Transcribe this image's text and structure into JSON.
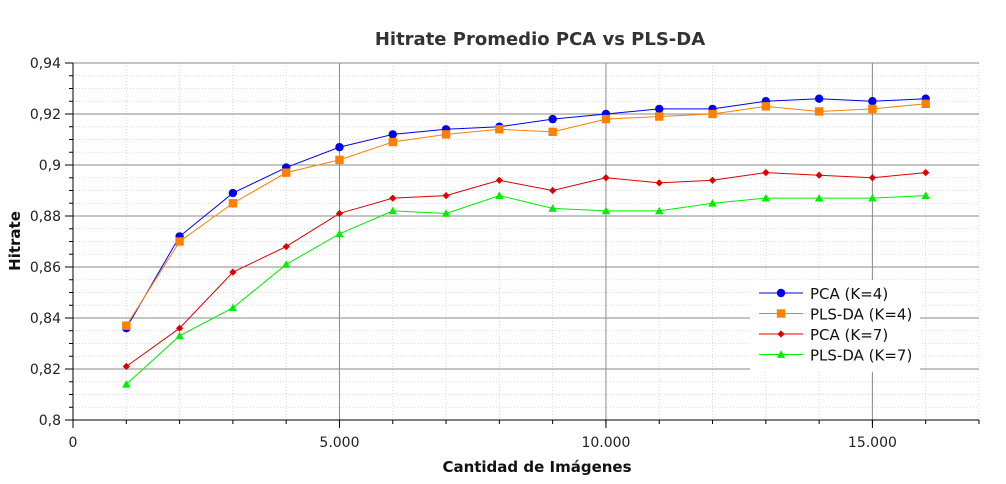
{
  "chart_data": {
    "type": "line",
    "title": "Hitrate Promedio PCA vs PLS-DA",
    "xlabel": "Cantidad de Imágenes",
    "ylabel": "Hitrate",
    "xlim": [
      0,
      17000
    ],
    "ylim": [
      0.8,
      0.94
    ],
    "x_ticks": [
      0,
      5000,
      10000,
      15000
    ],
    "x_tick_labels": [
      "0",
      "5.000",
      "10.000",
      "15.000"
    ],
    "y_ticks": [
      0.8,
      0.82,
      0.84,
      0.86,
      0.88,
      0.9,
      0.92,
      0.94
    ],
    "y_tick_labels": [
      "0,8",
      "0,82",
      "0,84",
      "0,86",
      "0,88",
      "0,9",
      "0,92",
      "0,94"
    ],
    "grid": true,
    "legend_position": "bottom-right",
    "x": [
      1000,
      2000,
      3000,
      4000,
      5000,
      6000,
      7000,
      8000,
      9000,
      10000,
      11000,
      12000,
      13000,
      14000,
      15000,
      16000
    ],
    "series": [
      {
        "name": "PCA (K=4)",
        "color": "#0000ee",
        "marker": "circle",
        "values": [
          0.836,
          0.872,
          0.889,
          0.899,
          0.907,
          0.912,
          0.914,
          0.915,
          0.918,
          0.92,
          0.922,
          0.922,
          0.925,
          0.926,
          0.925,
          0.926
        ]
      },
      {
        "name": "PLS-DA (K=4)",
        "color": "#ff8000",
        "marker": "square",
        "values": [
          0.837,
          0.87,
          0.885,
          0.897,
          0.902,
          0.909,
          0.912,
          0.914,
          0.913,
          0.918,
          0.919,
          0.92,
          0.923,
          0.921,
          0.922,
          0.924
        ]
      },
      {
        "name": "PCA (K=7)",
        "color": "#dd0000",
        "marker": "diamond",
        "values": [
          0.821,
          0.836,
          0.858,
          0.868,
          0.881,
          0.887,
          0.888,
          0.894,
          0.89,
          0.895,
          0.893,
          0.894,
          0.897,
          0.896,
          0.895,
          0.897
        ]
      },
      {
        "name": "PLS-DA (K=7)",
        "color": "#00ee00",
        "marker": "triangle",
        "values": [
          0.814,
          0.833,
          0.844,
          0.861,
          0.873,
          0.882,
          0.881,
          0.888,
          0.883,
          0.882,
          0.882,
          0.885,
          0.887,
          0.887,
          0.887,
          0.888
        ]
      }
    ]
  }
}
